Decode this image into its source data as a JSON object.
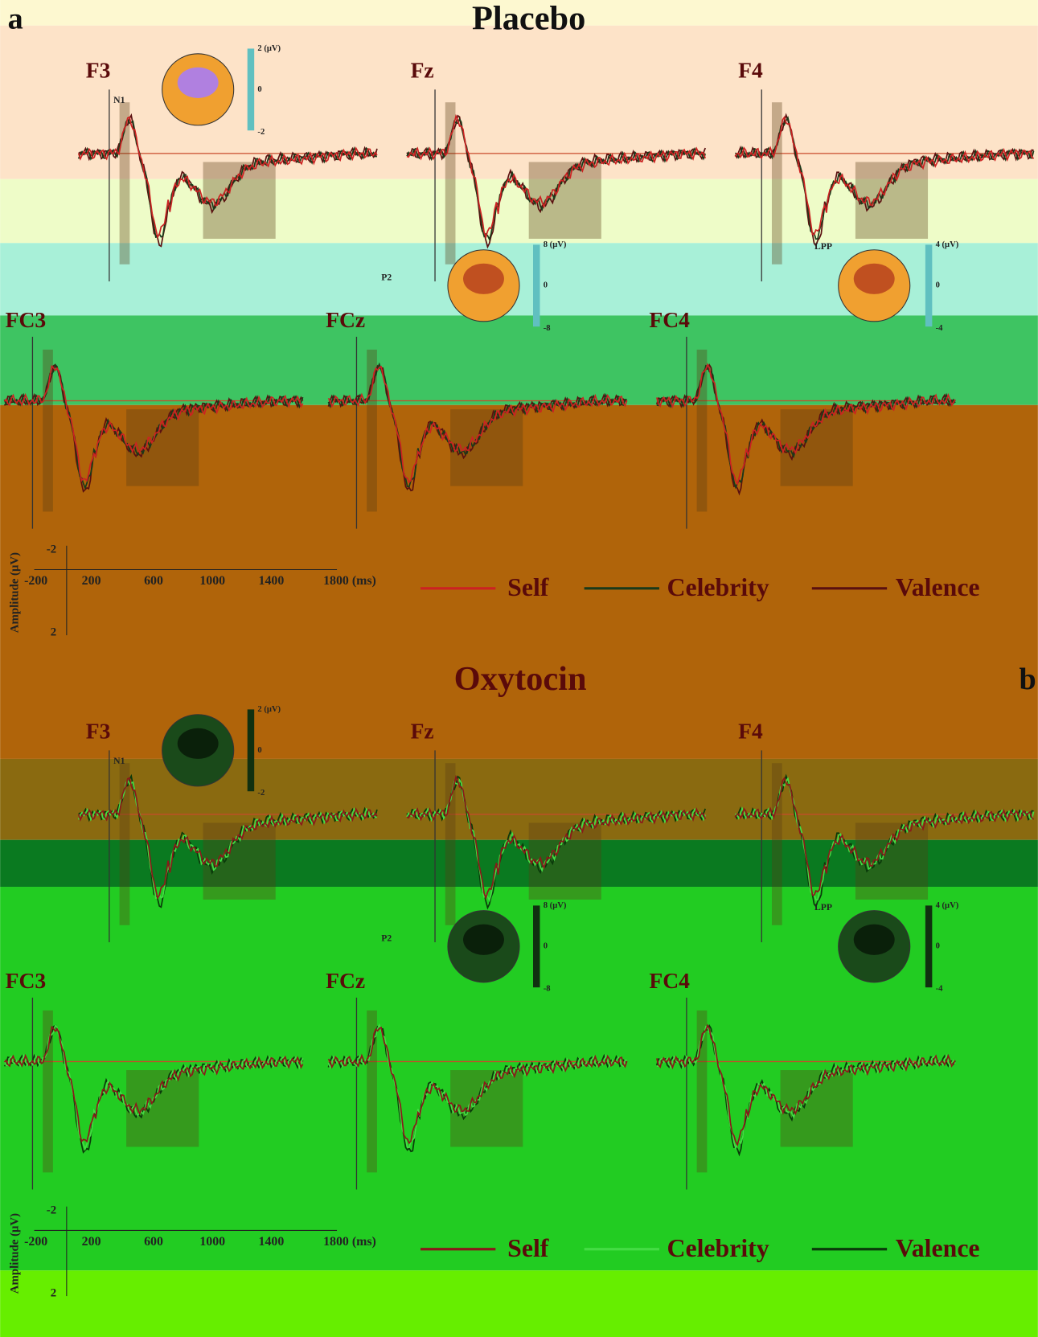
{
  "panels": [
    {
      "letter": "a",
      "title": "Placebo",
      "electrodes": [
        "F3",
        "Fz",
        "F4",
        "FC3",
        "FCz",
        "FC4"
      ],
      "component_labels": [
        "N1",
        "P2",
        "LPP"
      ],
      "topomaps": [
        {
          "max": "2 (μV)",
          "mid": "0",
          "min": "-2"
        },
        {
          "max": "8 (μV)",
          "mid": "0",
          "min": "-8"
        },
        {
          "max": "4 (μV)",
          "mid": "0",
          "min": "-4"
        }
      ],
      "axis": {
        "ylabel": "Amplitude (μV)",
        "yticks": [
          "-2",
          "2"
        ],
        "xticks": [
          "-200",
          "200",
          "600",
          "1000",
          "1400",
          "1800 (ms)"
        ]
      },
      "legend": [
        "Self",
        "Celebrity",
        "Valence"
      ]
    },
    {
      "letter": "b",
      "title": "Oxytocin",
      "electrodes": [
        "F3",
        "Fz",
        "F4",
        "FC3",
        "FCz",
        "FC4"
      ],
      "component_labels": [
        "N1",
        "P2",
        "LPP"
      ],
      "topomaps": [
        {
          "max": "2 (μV)",
          "mid": "0",
          "min": "-2"
        },
        {
          "max": "8 (μV)",
          "mid": "0",
          "min": "-8"
        },
        {
          "max": "4 (μV)",
          "mid": "0",
          "min": "-4"
        }
      ],
      "axis": {
        "ylabel": "Amplitude (μV)",
        "yticks": [
          "-2",
          "2"
        ],
        "xticks": [
          "-200",
          "200",
          "600",
          "1000",
          "1400",
          "1800 (ms)"
        ]
      },
      "legend": [
        "Self",
        "Celebrity",
        "Valence"
      ]
    }
  ]
}
